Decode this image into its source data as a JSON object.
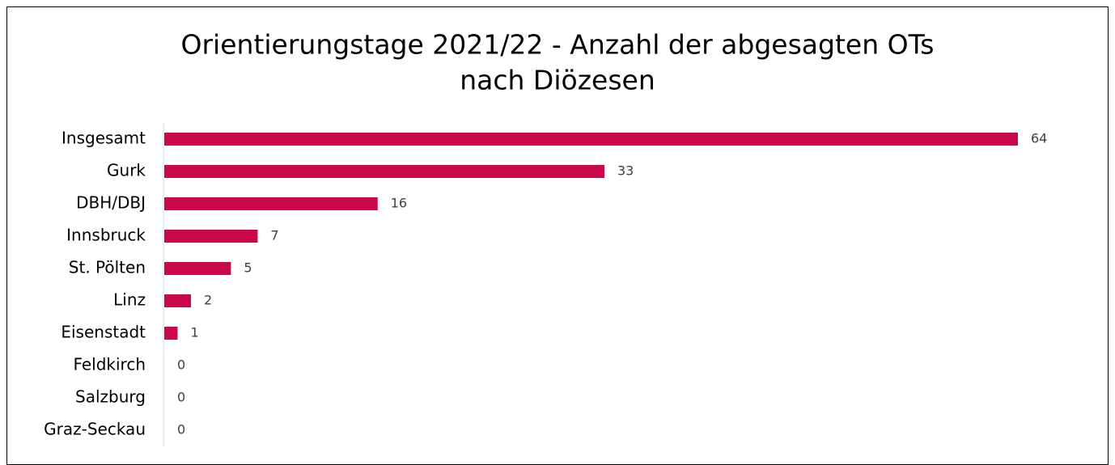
{
  "chart_data": {
    "type": "barh",
    "title": [
      "Orientierungstage 2021/22 - Anzahl der abgesagten OTs",
      "nach Diözesen"
    ],
    "categories": [
      "Insgesamt",
      "Gurk",
      "DBH/DBJ",
      "Innsbruck",
      "St. Pölten",
      "Linz",
      "Eisenstadt",
      "Feldkirch",
      "Salzburg",
      "Graz-Seckau"
    ],
    "values": [
      64,
      33,
      16,
      7,
      5,
      2,
      1,
      0,
      0,
      0
    ],
    "color": "#c8084a"
  }
}
